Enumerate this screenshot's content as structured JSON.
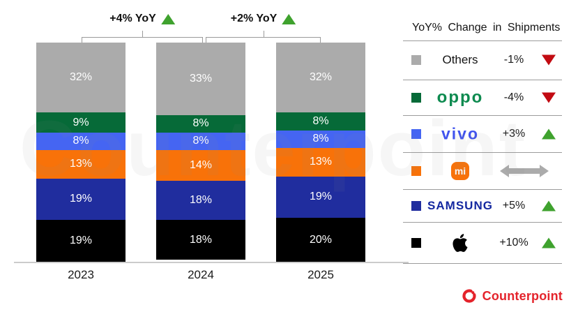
{
  "watermark": "Counterpoint",
  "footer": {
    "brand": "Counterpoint"
  },
  "colors": {
    "others": "#ababab",
    "oppo": "#066a38",
    "vivo": "#4565f2",
    "xiaomi": "#f87209",
    "samsung": "#202d9e",
    "apple": "#000000",
    "up_arrow": "#3fa22e",
    "down_arrow": "#c20b12",
    "flat_arrow": "#ababab",
    "counterpoint_red": "#e4232b"
  },
  "chart_data": {
    "type": "bar",
    "stacked": true,
    "unit": "%",
    "categories": [
      "2023",
      "2024",
      "2025"
    ],
    "series": [
      {
        "name": "Others",
        "color": "#ababab",
        "values": [
          32,
          33,
          32
        ]
      },
      {
        "name": "OPPO",
        "color": "#066a38",
        "values": [
          9,
          8,
          8
        ]
      },
      {
        "name": "vivo",
        "color": "#4565f2",
        "values": [
          8,
          8,
          8
        ]
      },
      {
        "name": "Xiaomi",
        "color": "#f87209",
        "values": [
          13,
          14,
          13
        ]
      },
      {
        "name": "Samsung",
        "color": "#202d9e",
        "values": [
          19,
          18,
          19
        ]
      },
      {
        "name": "Apple",
        "color": "#000000",
        "values": [
          19,
          18,
          20
        ]
      }
    ],
    "ylim": [
      0,
      100
    ],
    "grid": false,
    "annotations": [
      {
        "label": "+4% YoY",
        "direction": "up",
        "between": [
          0,
          1
        ]
      },
      {
        "label": "+2% YoY",
        "direction": "up",
        "between": [
          1,
          2
        ]
      }
    ],
    "legend": {
      "title": "YoY% Change in Shipments",
      "position": "right",
      "rows": [
        {
          "brand": "Others",
          "logo": "text",
          "logo_text": "Others",
          "swatch": "#ababab",
          "change": "-1%",
          "direction": "down"
        },
        {
          "brand": "OPPO",
          "logo": "oppo",
          "logo_text": "oppo",
          "swatch": "#066a38",
          "change": "-4%",
          "direction": "down"
        },
        {
          "brand": "vivo",
          "logo": "vivo",
          "logo_text": "vivo",
          "swatch": "#4565f2",
          "change": "+3%",
          "direction": "up"
        },
        {
          "brand": "Xiaomi",
          "logo": "mi",
          "logo_text": "mi",
          "swatch": "#f87209",
          "change": "",
          "direction": "flat"
        },
        {
          "brand": "Samsung",
          "logo": "samsung",
          "logo_text": "SAMSUNG",
          "swatch": "#202d9e",
          "change": "+5%",
          "direction": "up"
        },
        {
          "brand": "Apple",
          "logo": "apple",
          "logo_text": "",
          "swatch": "#000000",
          "change": "+10%",
          "direction": "up"
        }
      ]
    }
  }
}
